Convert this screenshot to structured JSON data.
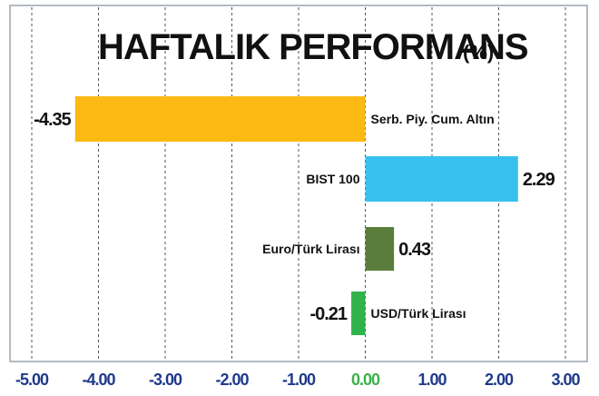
{
  "chart_data": {
    "type": "bar",
    "orientation": "horizontal",
    "title": "HAFTALIK PERFORMANS",
    "subtitle": "(%)",
    "categories": [
      "Serb. Piy. Cum. Altın",
      "BIST 100",
      "Euro/Türk Lirası",
      "USD/Türk Lirası"
    ],
    "values": [
      -4.35,
      2.29,
      0.43,
      -0.21
    ],
    "value_labels": [
      "-4.35",
      "2.29",
      "0.43",
      "-0.21"
    ],
    "bar_colors": [
      "#fdb913",
      "#38c1ee",
      "#5a7d3c",
      "#2fb34a"
    ],
    "xlim": [
      -5.0,
      3.0
    ],
    "xticks": [
      -5.0,
      -4.0,
      -3.0,
      -2.0,
      -1.0,
      0.0,
      1.0,
      2.0,
      3.0
    ],
    "xtick_labels": [
      "-5.00",
      "-4.00",
      "-3.00",
      "-2.00",
      "-1.00",
      "0.00",
      "1.00",
      "2.00",
      "3.00"
    ],
    "zero_tick_color": "#3cb04a",
    "tick_label_color": "#1f3a8a",
    "grid": "vertical-dashed",
    "xlabel": "",
    "ylabel": ""
  }
}
